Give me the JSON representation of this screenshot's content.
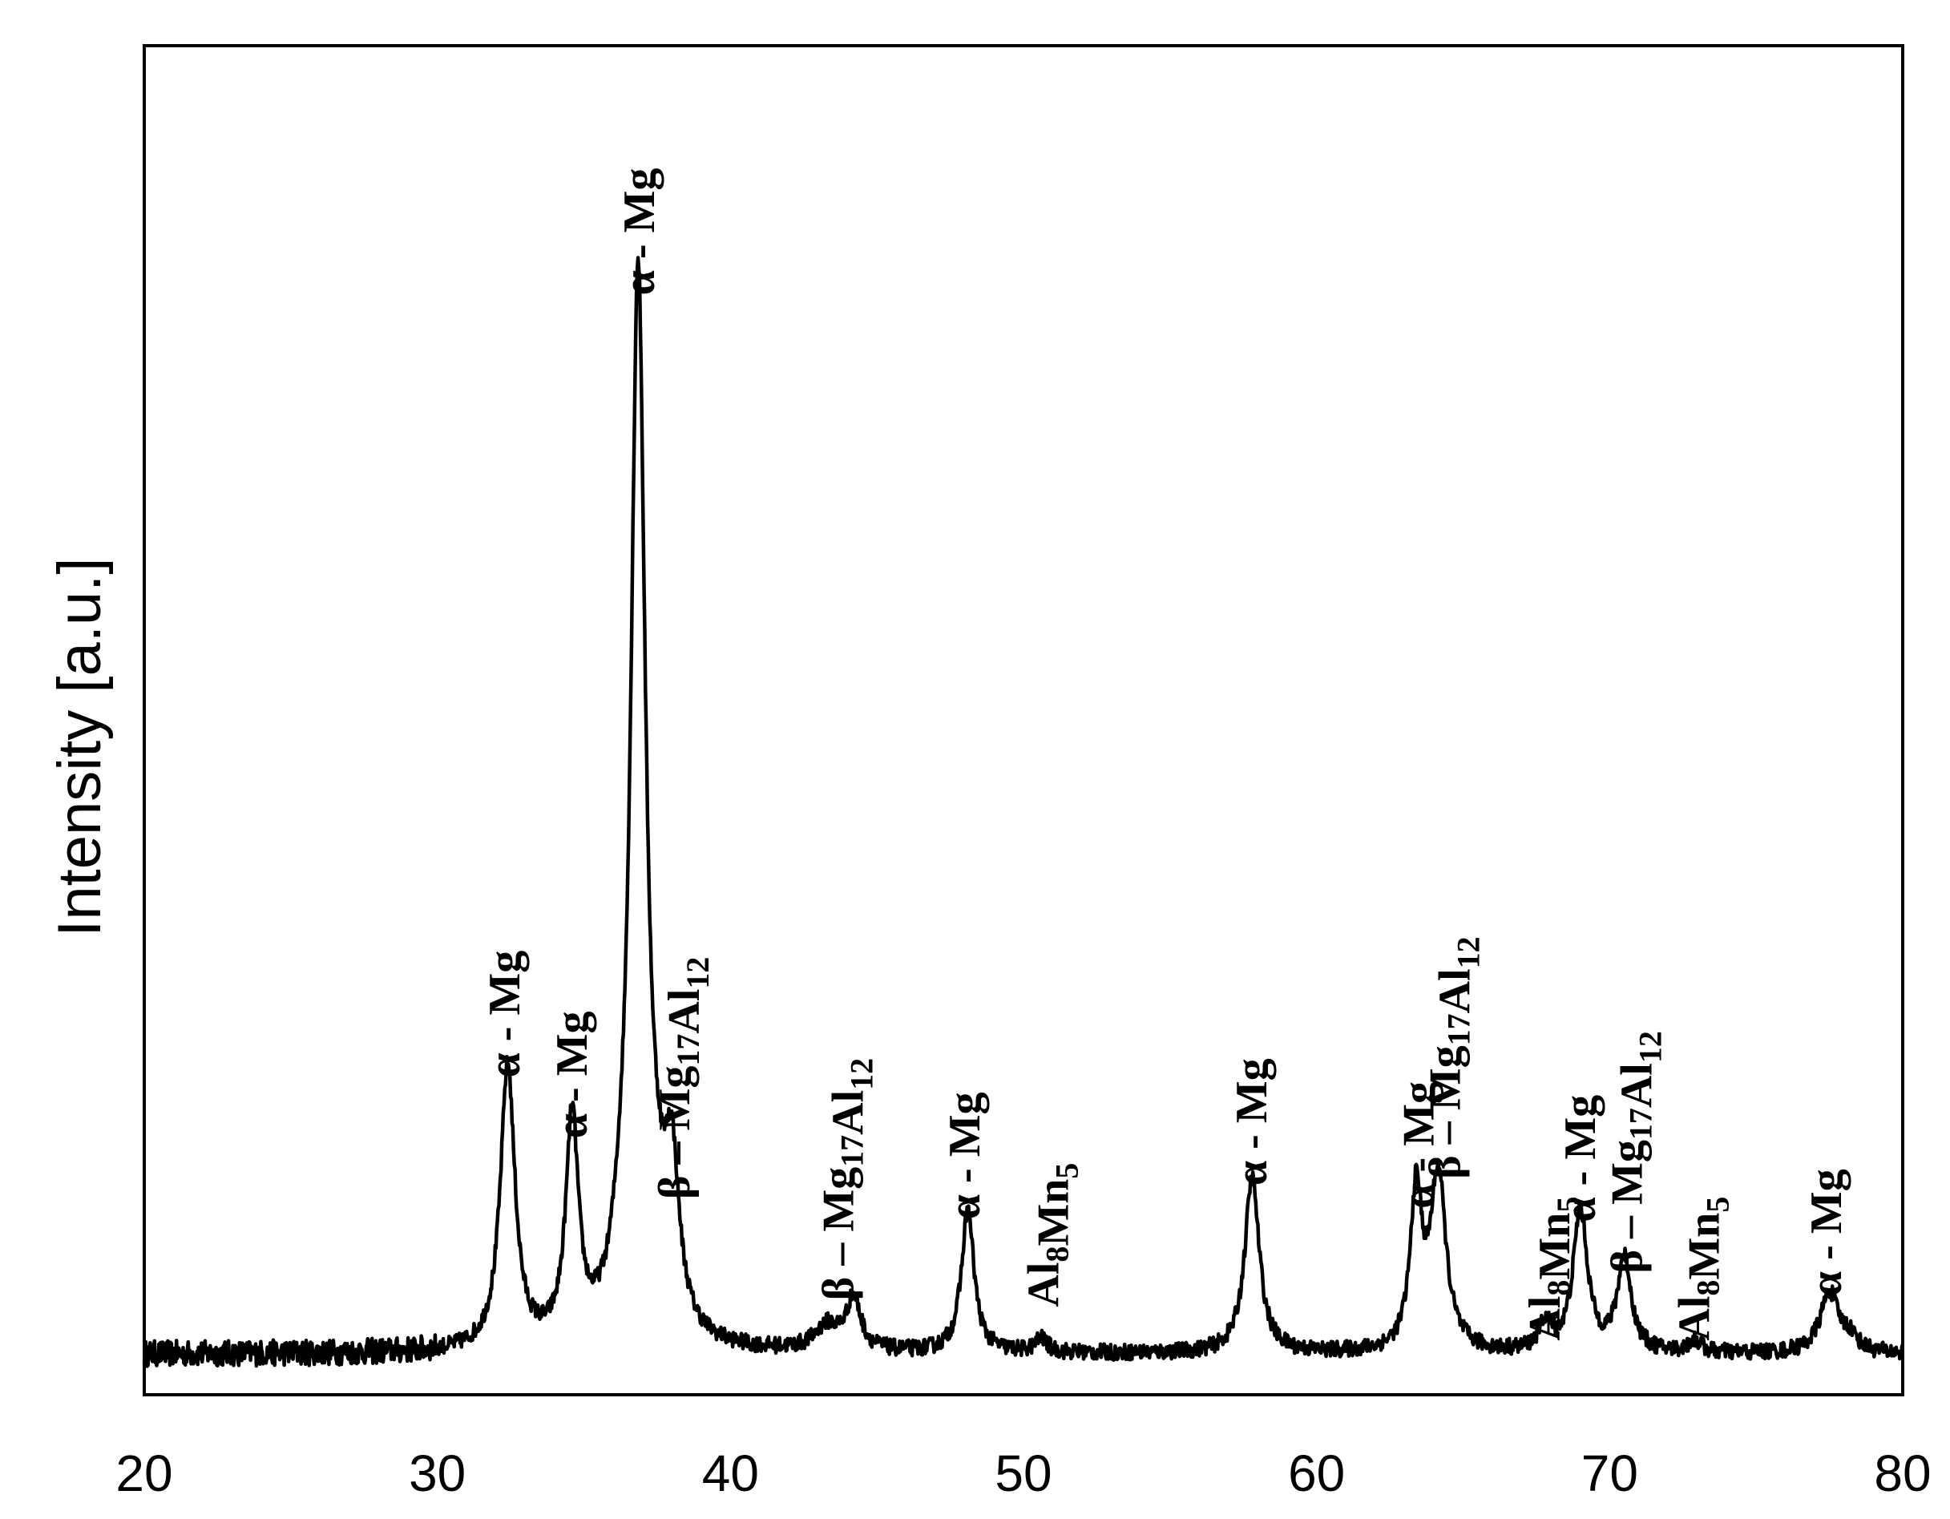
{
  "chart_data": {
    "type": "line",
    "title": "",
    "xlabel": "",
    "ylabel": "Intensity [a.u.]",
    "xlim": [
      20,
      80
    ],
    "ylim": [
      0,
      100
    ],
    "x_ticks": [
      "20",
      "30",
      "40",
      "50",
      "60",
      "70",
      "80"
    ],
    "y_ticks": [],
    "grid": false,
    "legend": "none",
    "line_color": "#000000",
    "baseline": 3,
    "noise": 0.6,
    "peaks": [
      {
        "x": 32.4,
        "height": 21.0,
        "width": 0.3
      },
      {
        "x": 34.6,
        "height": 16.5,
        "width": 0.26
      },
      {
        "x": 36.2,
        "height": 2.5,
        "width": 0.35
      },
      {
        "x": 36.85,
        "height": 79.0,
        "width": 0.3
      },
      {
        "x": 37.5,
        "height": 3.0,
        "width": 0.35
      },
      {
        "x": 38.0,
        "height": 11.5,
        "width": 0.3
      },
      {
        "x": 43.3,
        "height": 1.8,
        "width": 0.5
      },
      {
        "x": 44.2,
        "height": 3.8,
        "width": 0.3
      },
      {
        "x": 48.1,
        "height": 10.5,
        "width": 0.26
      },
      {
        "x": 50.6,
        "height": 1.0,
        "width": 0.25
      },
      {
        "x": 57.8,
        "height": 13.0,
        "width": 0.3
      },
      {
        "x": 63.4,
        "height": 11.5,
        "width": 0.24
      },
      {
        "x": 64.15,
        "height": 13.0,
        "width": 0.32
      },
      {
        "x": 67.8,
        "height": 2.0,
        "width": 0.25
      },
      {
        "x": 69.0,
        "height": 10.5,
        "width": 0.3
      },
      {
        "x": 70.5,
        "height": 7.0,
        "width": 0.28
      },
      {
        "x": 72.9,
        "height": 0.9,
        "width": 0.25
      },
      {
        "x": 77.5,
        "height": 4.5,
        "width": 0.38
      },
      {
        "x": 78.2,
        "height": 1.0,
        "width": 0.3
      }
    ],
    "annotations": [
      {
        "x": 32.3,
        "y": 23.5,
        "text": "α - Mg",
        "subs": []
      },
      {
        "x": 34.6,
        "y": 19.0,
        "text": "α - Mg",
        "subs": []
      },
      {
        "x": 36.9,
        "y": 81.5,
        "text": "α - Mg",
        "subs": []
      },
      {
        "x": 38.1,
        "y": 14.5,
        "text": "β – Mg17Al12",
        "subs": [
          "17",
          "12"
        ]
      },
      {
        "x": 43.7,
        "y": 7.0,
        "text": "β – Mg17Al12",
        "subs": [
          "17",
          "12"
        ]
      },
      {
        "x": 48.0,
        "y": 13.0,
        "text": "α - Mg",
        "subs": []
      },
      {
        "x": 50.7,
        "y": 6.5,
        "text": "Al8Mn5",
        "subs": [
          "8",
          "5"
        ]
      },
      {
        "x": 57.8,
        "y": 15.5,
        "text": "α - Mg",
        "subs": []
      },
      {
        "x": 63.5,
        "y": 13.8,
        "text": "α - Mg",
        "subs": []
      },
      {
        "x": 64.4,
        "y": 16.0,
        "text": "β – Mg17Al12",
        "subs": [
          "17",
          "12"
        ]
      },
      {
        "x": 67.8,
        "y": 4.0,
        "text": "Al8Mn5",
        "subs": [
          "8",
          "5"
        ]
      },
      {
        "x": 69.0,
        "y": 12.8,
        "text": "α - Mg",
        "subs": []
      },
      {
        "x": 70.6,
        "y": 9.0,
        "text": "β – Mg17Al12",
        "subs": [
          "17",
          "12"
        ]
      },
      {
        "x": 72.9,
        "y": 4.0,
        "text": "Al8Mn5",
        "subs": [
          "8",
          "5"
        ]
      },
      {
        "x": 77.4,
        "y": 7.3,
        "text": "α - Mg",
        "subs": []
      }
    ]
  }
}
